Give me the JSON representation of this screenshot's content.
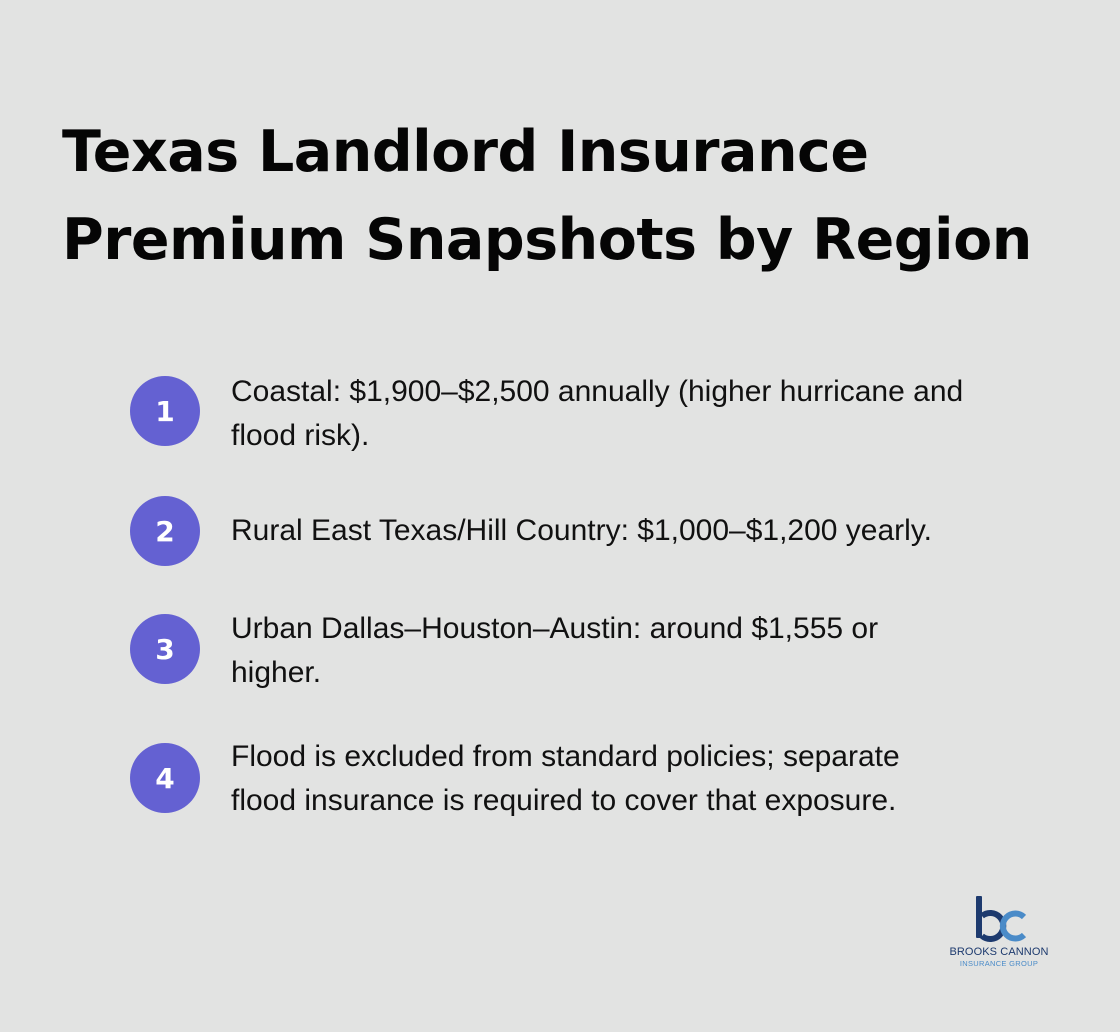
{
  "title": {
    "line1": "Texas Landlord Insurance",
    "line2": "Premium Snapshots by Region"
  },
  "items": [
    {
      "number": "1",
      "lines": [
        "Coastal: $1,900–$2,500 annually (higher hurricane and",
        "flood risk)."
      ]
    },
    {
      "number": "2",
      "lines": [
        "Rural East Texas/Hill Country: $1,000–$1,200 yearly."
      ]
    },
    {
      "number": "3",
      "lines": [
        "Urban Dallas–Houston–Austin: around $1,555 or",
        "higher."
      ]
    },
    {
      "number": "4",
      "lines": [
        "Flood is excluded from standard policies; separate",
        "flood insurance is required to cover that exposure."
      ]
    }
  ],
  "logo": {
    "name": "BROOKS CANNON",
    "subtitle": "INSURANCE GROUP",
    "icon": "bc-monogram-logo"
  },
  "colors": {
    "background": "#e2e3e2",
    "badge": "#6461d2",
    "logo_dark": "#1d3a6e",
    "logo_light": "#4a8bc8"
  }
}
